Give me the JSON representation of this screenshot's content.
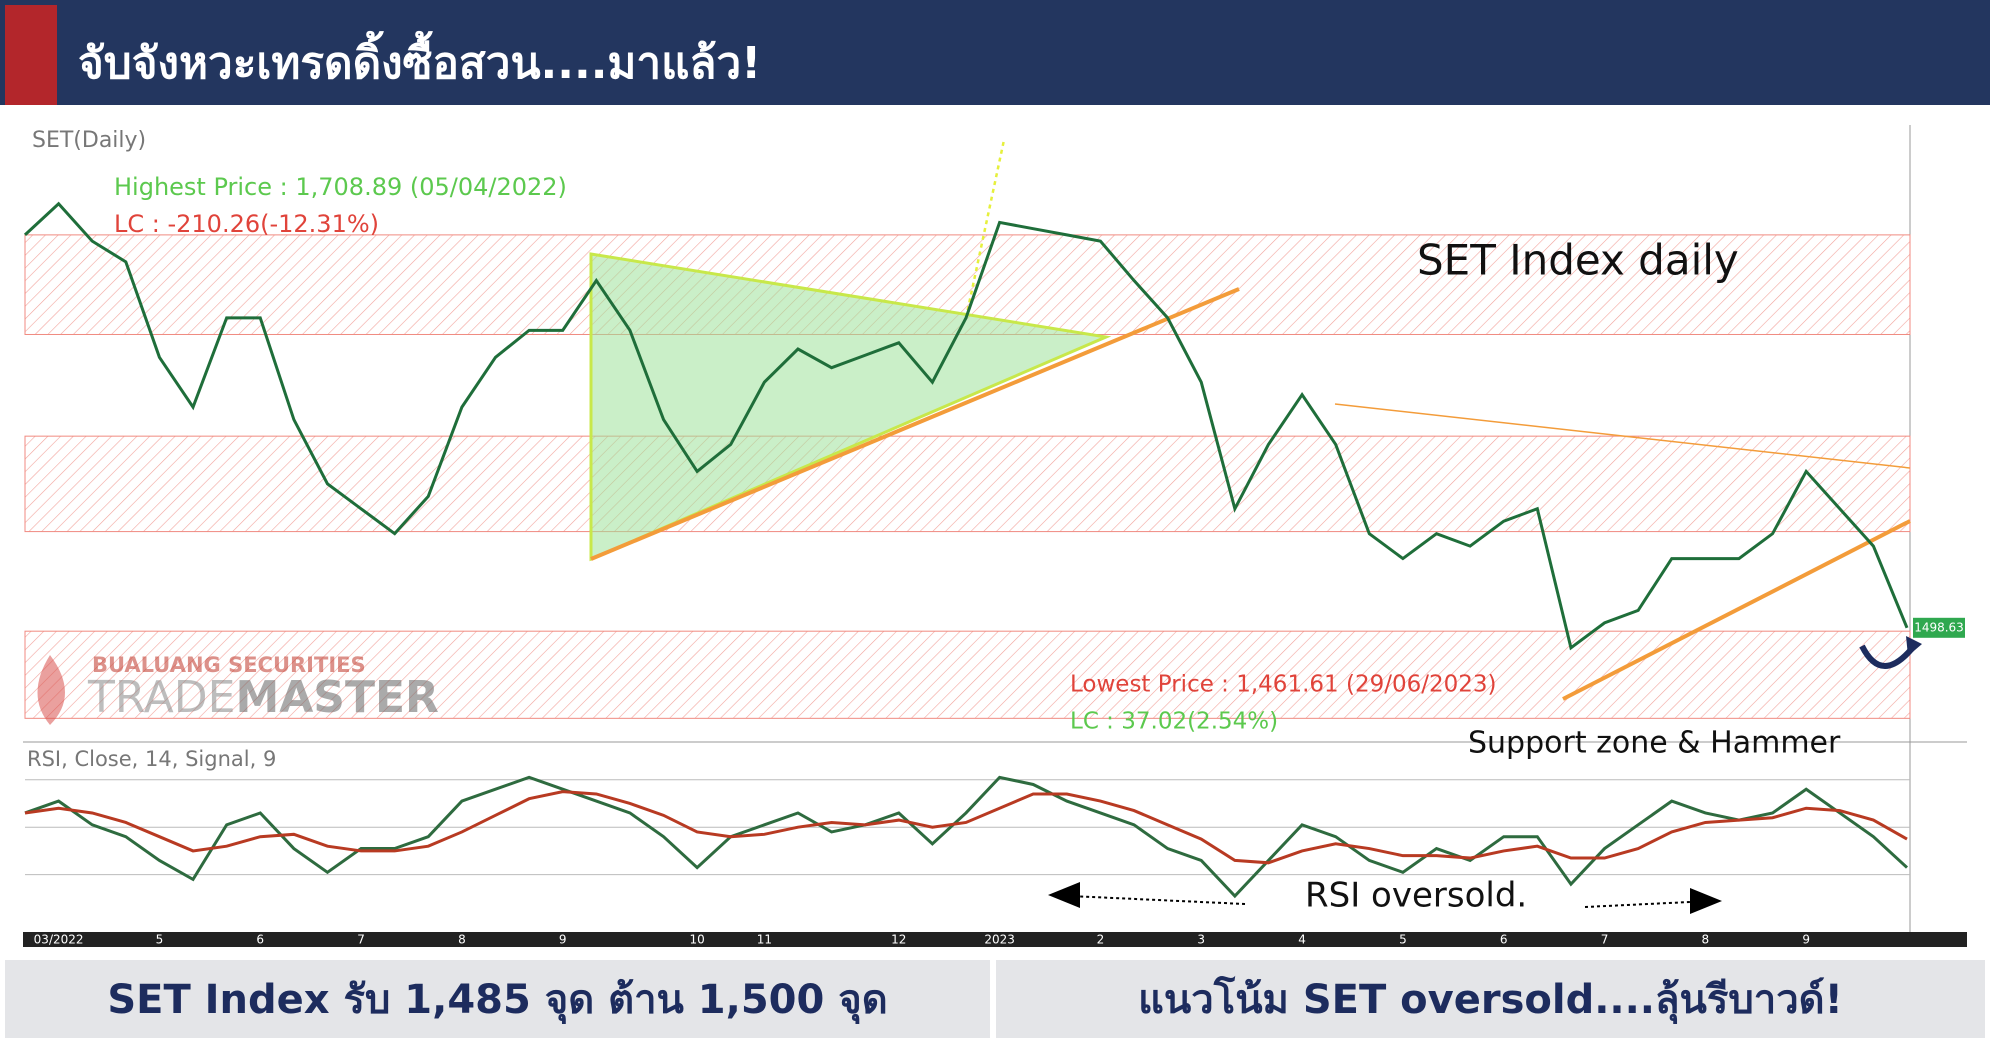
{
  "header": {
    "title": "จับจังหวะเทรดดิ้งซื้อสวน....มาแล้ว!"
  },
  "footer": {
    "left": "SET Index รับ 1,485 จุด ต้าน 1,500 จุด",
    "right": "แนวโน้ม SET oversold....ลุ้นรีบาวด์!"
  },
  "logo": {
    "company": "BUALUANG SECURITIES",
    "part1": "TRADE",
    "part2": "MASTER"
  },
  "chart_data": [
    {
      "type": "line",
      "categories": [
        null,
        "03/2022",
        null,
        null,
        "5",
        null,
        null,
        "6",
        null,
        null,
        "7",
        null,
        null,
        "8",
        null,
        null,
        "9",
        null,
        null,
        null,
        "10",
        null,
        "11",
        null,
        null,
        null,
        "12",
        null,
        null,
        "2023",
        null,
        null,
        "2",
        null,
        null,
        "3",
        null,
        null,
        "4",
        null,
        null,
        "5",
        null,
        null,
        "6",
        null,
        null,
        "7",
        null,
        null,
        "8",
        null,
        null,
        "9",
        null,
        null,
        null
      ],
      "series": [
        {
          "name": "SET(Daily)",
          "color": "#1f6e3a",
          "values": [
            1688,
            1703,
            1685,
            1675,
            1629,
            1605,
            1648,
            1648,
            1599,
            1568,
            1556,
            1544,
            1562,
            1605,
            1629,
            1642,
            1642,
            1666,
            1642,
            1599,
            1574,
            1587,
            1617,
            1633,
            1624,
            1630,
            1636,
            1617,
            1648,
            1694,
            1691,
            1688,
            1685,
            1666,
            1648,
            1617,
            1556,
            1587,
            1611,
            1587,
            1544,
            1532,
            1544,
            1538,
            1550,
            1556,
            1489,
            1501,
            1507,
            1532,
            1532,
            1532,
            1544,
            1574,
            1556,
            1538,
            1498.63
          ]
        }
      ],
      "ylim": [
        1446,
        1740
      ],
      "zones": [
        [
          1640,
          1688
        ],
        [
          1545,
          1591
        ],
        [
          1455,
          1497
        ]
      ],
      "zone_color": "#f08a80",
      "annotations": [
        "Highest Price : 1,708.89 (05/04/2022)",
        "LC : -210.26(-12.31%)",
        "SET Index daily",
        "Lowest Price : 1,461.61 (29/06/2023)",
        "LC : 37.02(2.54%)",
        "Support zone & Hammer"
      ]
    },
    {
      "type": "line",
      "title": "RSI, Close, 14, Signal, 9",
      "series": [
        {
          "color": "#2e6b3f",
          "values": [
            56,
            61,
            51,
            46,
            36,
            28,
            51,
            56,
            41,
            31,
            41,
            41,
            46,
            61,
            66,
            71,
            66,
            61,
            56,
            46,
            33,
            46,
            51,
            56,
            48,
            51,
            56,
            43,
            56,
            71,
            68,
            61,
            56,
            51,
            41,
            36,
            21,
            36,
            51,
            46,
            36,
            31,
            41,
            36,
            46,
            46,
            26,
            41,
            51,
            61,
            56,
            53,
            56,
            66,
            56,
            46,
            33
          ]
        },
        {
          "color": "#b83a22",
          "values": [
            56,
            58,
            56,
            52,
            46,
            40,
            42,
            46,
            47,
            42,
            40,
            40,
            42,
            48,
            55,
            62,
            65,
            64,
            60,
            55,
            48,
            46,
            47,
            50,
            52,
            51,
            53,
            50,
            52,
            58,
            64,
            64,
            61,
            57,
            51,
            45,
            36,
            35,
            40,
            43,
            41,
            38,
            38,
            37,
            40,
            42,
            37,
            37,
            41,
            48,
            52,
            53,
            54,
            58,
            57,
            53,
            45
          ]
        }
      ],
      "ylim": [
        5,
        80
      ],
      "levels": [
        30,
        50,
        70
      ],
      "annotations": [
        "RSI oversold."
      ]
    }
  ]
}
